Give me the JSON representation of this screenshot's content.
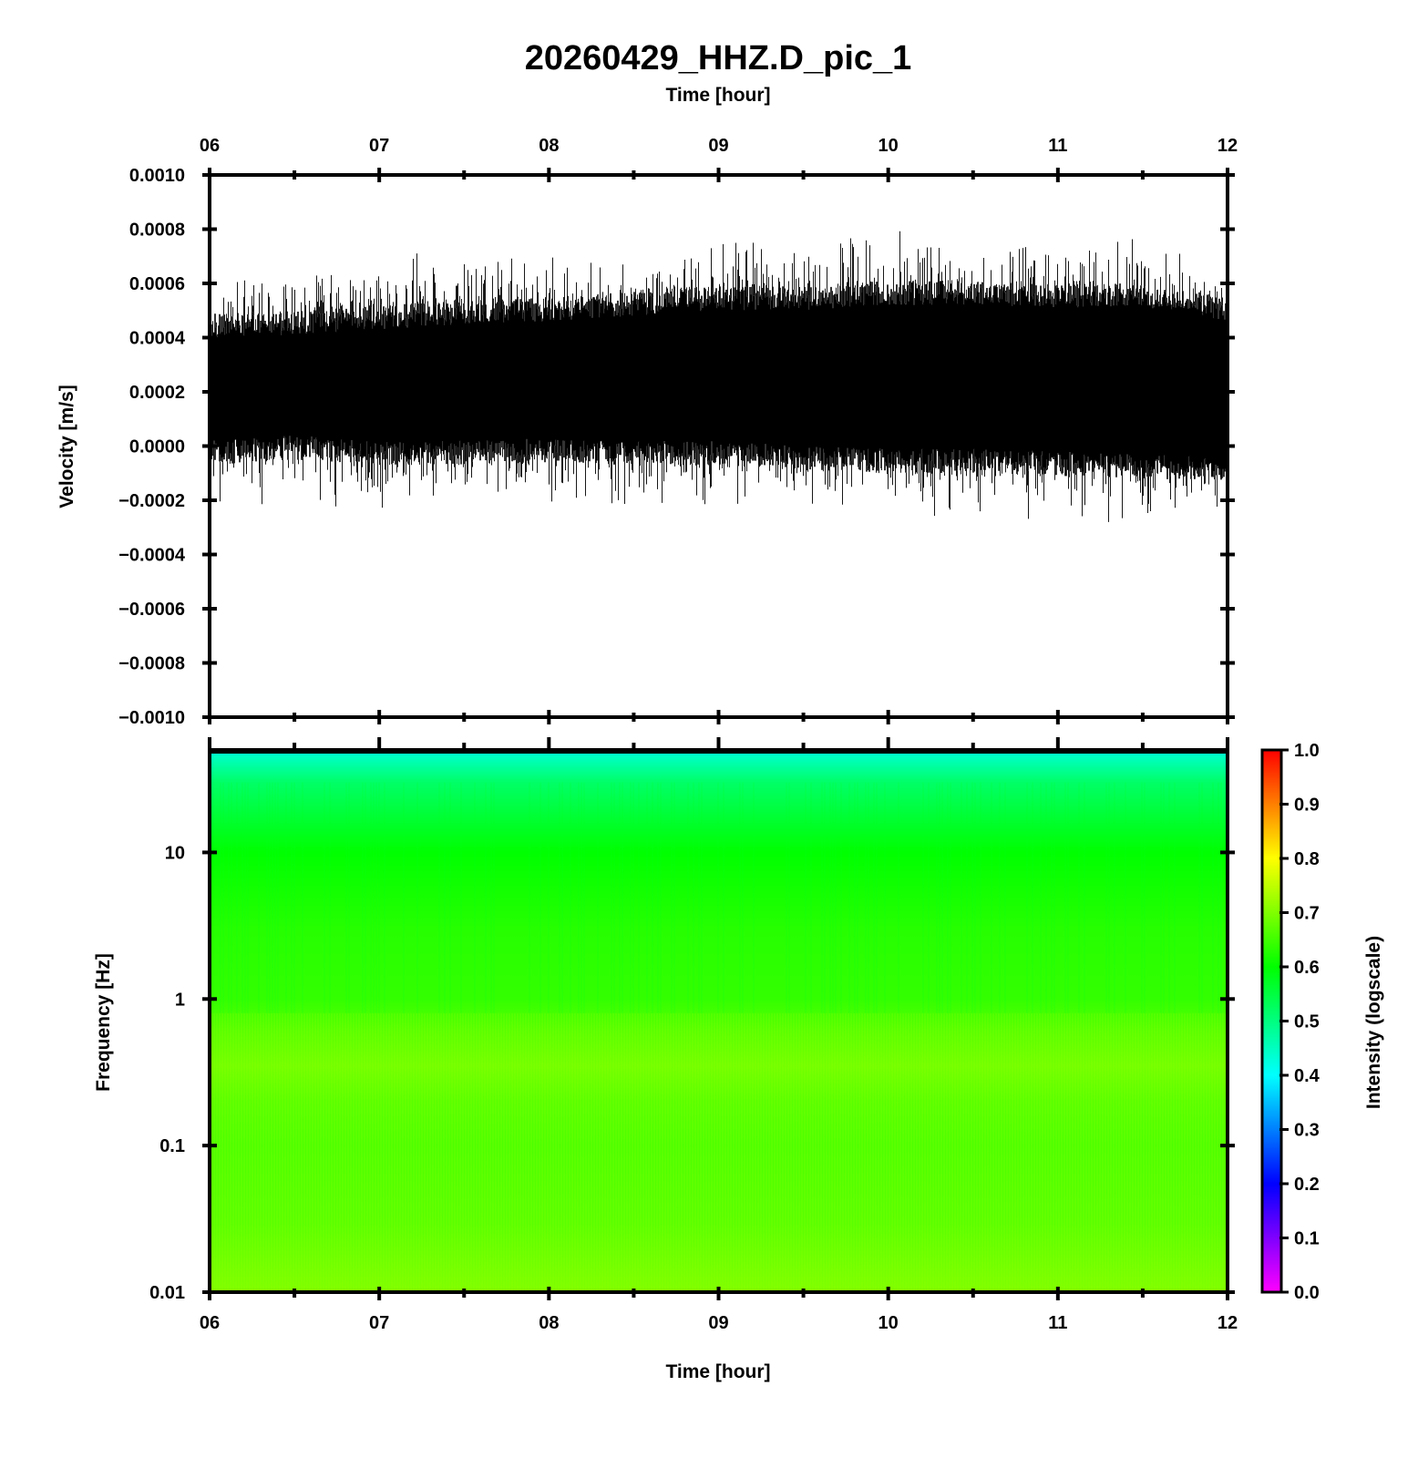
{
  "chart_data": [
    {
      "type": "line",
      "title": "20260429_HHZ.D_pic_1",
      "xlabel": "Time [hour]",
      "ylabel": "Velocity [m/s]",
      "xlim": [
        6,
        12
      ],
      "ylim": [
        -0.001,
        0.001
      ],
      "x_ticks": [
        "06",
        "07",
        "08",
        "09",
        "10",
        "11",
        "12"
      ],
      "y_ticks": [
        "0.0010",
        "0.0008",
        "0.0006",
        "0.0004",
        "0.0002",
        "0.0000",
        "−0.0002",
        "−0.0004",
        "−0.0006",
        "−0.0008",
        "−0.0010"
      ],
      "grid": false,
      "series_color": "#000000",
      "envelope": {
        "x": [
          6.0,
          6.5,
          7.0,
          7.5,
          8.0,
          8.5,
          9.0,
          9.5,
          10.0,
          10.5,
          11.0,
          11.5,
          12.0
        ],
        "baseline": [
          0.00022,
          0.00022,
          0.00022,
          0.00023,
          0.00024,
          0.00025,
          0.00025,
          0.00025,
          0.00026,
          0.00026,
          0.00026,
          0.00026,
          0.00025
        ],
        "upper": [
          0.00052,
          0.00053,
          0.00055,
          0.00057,
          0.00058,
          0.0006,
          0.00062,
          0.00062,
          0.00064,
          0.00064,
          0.00063,
          0.00063,
          0.00058
        ],
        "lower": [
          -0.0001,
          -8e-05,
          -0.0001,
          -0.0001,
          -9e-05,
          -0.0001,
          -0.0001,
          -0.00012,
          -0.00013,
          -0.00013,
          -0.00014,
          -0.00015,
          -0.00016
        ],
        "upper_peak": [
          0.00068,
          0.00069,
          0.0007,
          0.00076,
          0.00073,
          0.00075,
          0.00081,
          0.00078,
          0.00083,
          0.00076,
          0.00078,
          0.0008,
          0.0007
        ],
        "lower_peak": [
          -0.00027,
          -0.00025,
          -0.00025,
          -0.00022,
          -0.00023,
          -0.00025,
          -0.00025,
          -0.00023,
          -0.00025,
          -0.00029,
          -0.00028,
          -0.00033,
          -0.0003
        ]
      }
    },
    {
      "type": "heatmap",
      "xlabel": "Time [hour]",
      "ylabel": "Frequency [Hz]",
      "xlim": [
        6,
        12
      ],
      "ylim": [
        0.01,
        50
      ],
      "yscale": "log",
      "x_ticks": [
        "06",
        "07",
        "08",
        "09",
        "10",
        "11",
        "12"
      ],
      "y_ticks": [
        "0.01",
        "0.1",
        "1",
        "10"
      ],
      "colorbar": {
        "label": "Intensity (logscale)",
        "range": [
          0,
          1
        ],
        "ticks": [
          "0.0",
          "0.1",
          "0.2",
          "0.3",
          "0.4",
          "0.5",
          "0.6",
          "0.7",
          "0.8",
          "0.9",
          "1.0"
        ],
        "colors": [
          "#ff00ff",
          "#0000ff",
          "#00ffff",
          "#00ff00",
          "#ffff00",
          "#ff0000"
        ]
      },
      "intensity_profile": {
        "frequency_hz": [
          50,
          30,
          10,
          3,
          1,
          0.6,
          0.35,
          0.2,
          0.1,
          0.03,
          0.01
        ],
        "intensity": [
          0.43,
          0.52,
          0.6,
          0.63,
          0.64,
          0.67,
          0.69,
          0.67,
          0.66,
          0.67,
          0.7
        ]
      }
    }
  ]
}
